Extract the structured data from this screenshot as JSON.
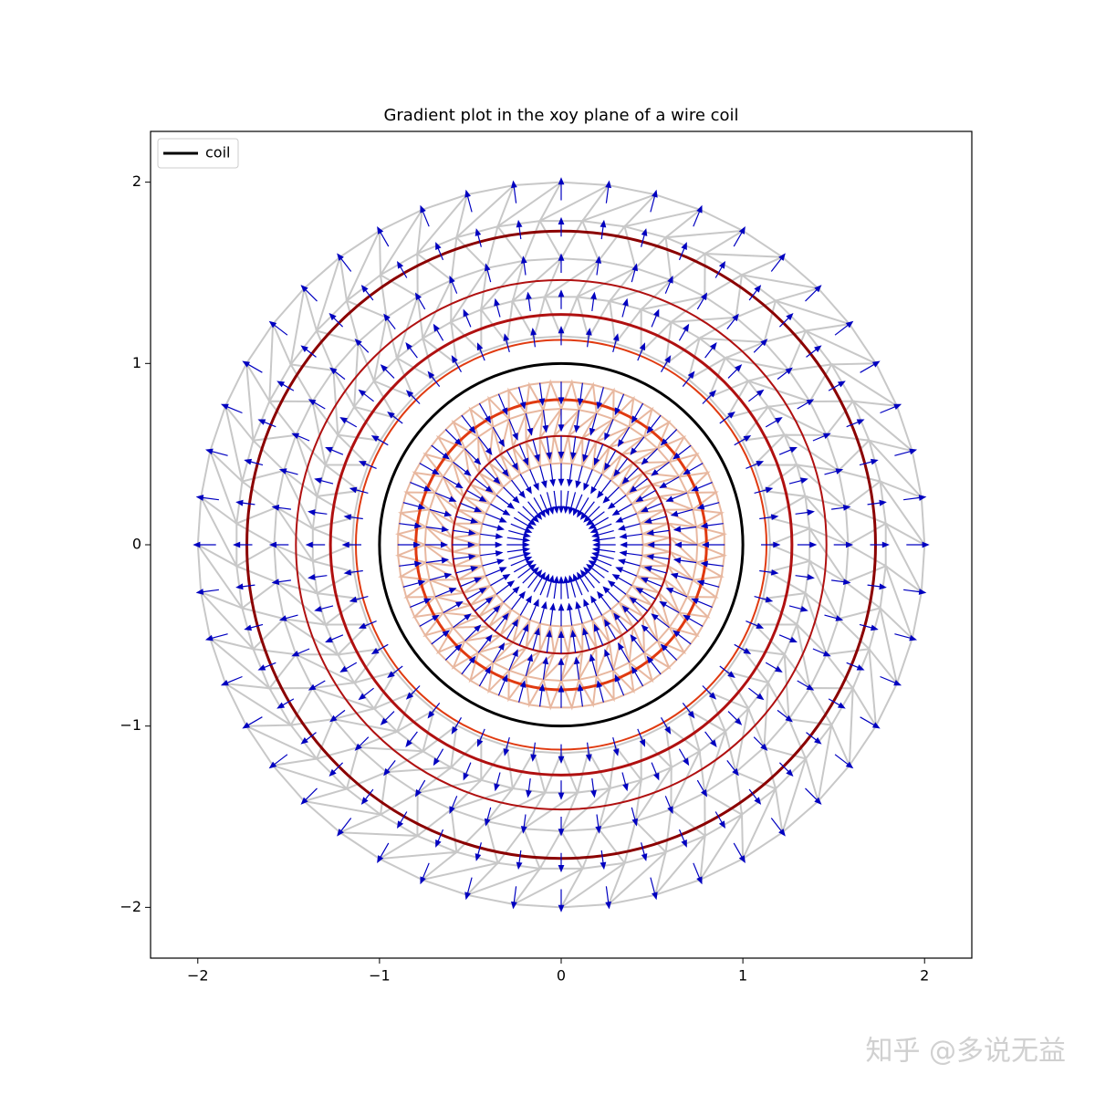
{
  "chart_data": {
    "type": "quiver",
    "title": "Gradient plot in the xoy plane of a wire coil",
    "xlim": [
      -2.26,
      2.26
    ],
    "ylim": [
      -2.28,
      2.28
    ],
    "xticks": [
      {
        "value": -2,
        "label": "−2"
      },
      {
        "value": -1,
        "label": "−1"
      },
      0,
      1,
      2
    ],
    "yticks": [
      {
        "value": -2,
        "label": "−2"
      },
      {
        "value": -1,
        "label": "−1"
      },
      0,
      1,
      2
    ],
    "legend": "upper left",
    "coil": {
      "name": "coil",
      "color": "#000000",
      "radius": 1
    },
    "contours": [
      {
        "radius": 0.6,
        "color": "#b01010"
      },
      {
        "radius": 0.8,
        "color": "#e03a10"
      },
      {
        "radius": 1.13,
        "color": "#e03a10"
      },
      {
        "radius": 1.27,
        "color": "#b01010"
      },
      {
        "radius": 1.46,
        "color": "#b01010"
      },
      {
        "radius": 1.73,
        "color": "#8b0000"
      }
    ],
    "meshes": [
      {
        "radii": [
          0.45,
          0.6,
          0.75,
          0.9
        ],
        "spokes": 48,
        "color": "#e8b8a0"
      },
      {
        "radii": [
          1.15,
          1.37,
          1.58,
          1.79,
          2.0
        ],
        "spokes": 48,
        "color": "#c8c8c8"
      }
    ],
    "quiver": {
      "spokes": 48,
      "color": "#0000c0",
      "radii": [
        0.3,
        0.45,
        0.6,
        0.75,
        0.9,
        1.1,
        1.3,
        1.5,
        1.7,
        1.9
      ],
      "lengths": [
        -0.12,
        -0.12,
        -0.12,
        -0.12,
        -0.12,
        0.1,
        0.1,
        0.1,
        0.1,
        0.12
      ]
    },
    "watermark": "知乎 @多说无益"
  }
}
